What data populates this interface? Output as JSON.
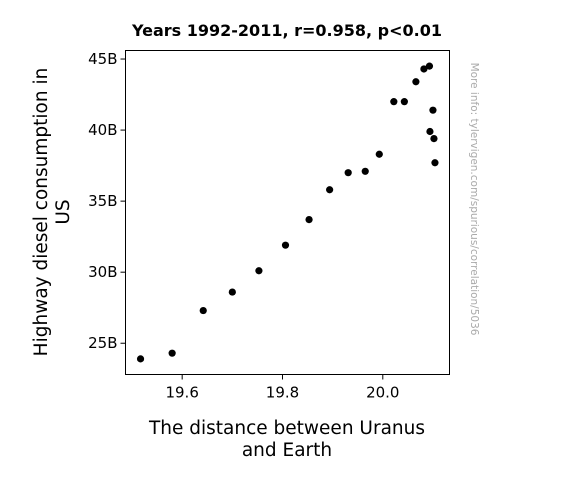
{
  "chart_data": {
    "type": "scatter",
    "title": "Years 1992-2011, r=0.958, p<0.01",
    "xlabel_lines": [
      "The distance between Uranus",
      "and Earth"
    ],
    "ylabel_lines": [
      "Highway diesel consumption in",
      "US"
    ],
    "side_note": "More info: tylervigen.com/spurious/correlation/5036",
    "xlim": [
      19.487,
      20.133
    ],
    "ylim": [
      22.8,
      45.6
    ],
    "x_ticks": [
      {
        "value": 19.6,
        "label": "19.6"
      },
      {
        "value": 19.8,
        "label": "19.8"
      },
      {
        "value": 20.0,
        "label": "20.0"
      }
    ],
    "y_ticks": [
      {
        "value": 25,
        "label": "25B"
      },
      {
        "value": 30,
        "label": "30B"
      },
      {
        "value": 35,
        "label": "35B"
      },
      {
        "value": 40,
        "label": "40B"
      },
      {
        "value": 45,
        "label": "45B"
      }
    ],
    "grid": false,
    "marker_color": "#000000",
    "points": [
      {
        "x": 19.517,
        "y": 23.9
      },
      {
        "x": 19.58,
        "y": 24.3
      },
      {
        "x": 19.642,
        "y": 27.3
      },
      {
        "x": 19.7,
        "y": 28.6
      },
      {
        "x": 19.753,
        "y": 30.1
      },
      {
        "x": 19.806,
        "y": 31.9
      },
      {
        "x": 19.853,
        "y": 33.7
      },
      {
        "x": 19.894,
        "y": 35.8
      },
      {
        "x": 19.931,
        "y": 37.0
      },
      {
        "x": 19.965,
        "y": 37.1
      },
      {
        "x": 19.993,
        "y": 38.3
      },
      {
        "x": 20.022,
        "y": 42.0
      },
      {
        "x": 20.043,
        "y": 42.0
      },
      {
        "x": 20.066,
        "y": 43.4
      },
      {
        "x": 20.082,
        "y": 44.3
      },
      {
        "x": 20.093,
        "y": 44.5
      },
      {
        "x": 20.1,
        "y": 41.4
      },
      {
        "x": 20.094,
        "y": 39.9
      },
      {
        "x": 20.102,
        "y": 39.4
      },
      {
        "x": 20.104,
        "y": 37.7
      }
    ]
  }
}
